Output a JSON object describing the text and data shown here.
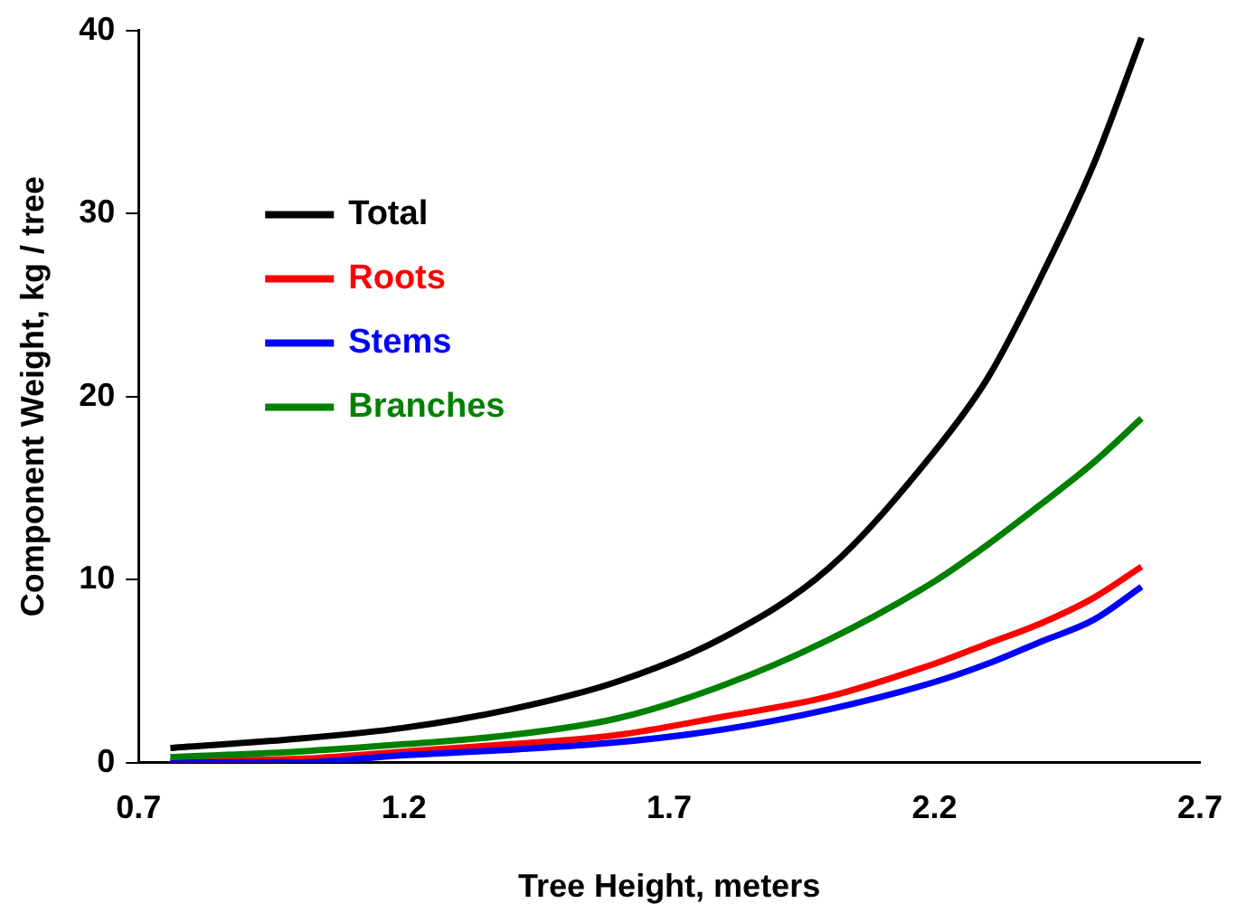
{
  "chart_data": {
    "type": "line",
    "xlabel": "Tree Height, meters",
    "ylabel": "Component Weight, kg / tree",
    "x": [
      0.76,
      1.0,
      1.2,
      1.4,
      1.6,
      1.8,
      2.0,
      2.2,
      2.3,
      2.4,
      2.5,
      2.59
    ],
    "series": [
      {
        "name": "Total",
        "color": "#000000",
        "values": [
          0.8,
          1.3,
          1.9,
          2.9,
          4.4,
          6.8,
          10.6,
          17.0,
          21.0,
          26.5,
          32.7,
          39.6
        ]
      },
      {
        "name": "Roots",
        "color": "#ff0000",
        "values": [
          0.1,
          0.2,
          0.6,
          1.0,
          1.5,
          2.5,
          3.6,
          5.4,
          6.5,
          7.6,
          9.0,
          10.7
        ]
      },
      {
        "name": "Stems",
        "color": "#0000ff",
        "values": [
          0.0,
          0.0,
          0.4,
          0.7,
          1.1,
          1.8,
          2.9,
          4.4,
          5.4,
          6.6,
          7.8,
          9.6
        ]
      },
      {
        "name": "Branches",
        "color": "#008000",
        "values": [
          0.3,
          0.6,
          1.0,
          1.5,
          2.4,
          4.2,
          6.7,
          9.9,
          11.9,
          14.1,
          16.4,
          18.8
        ]
      }
    ],
    "xlim": [
      0.7,
      2.7
    ],
    "xticks": [
      0.7,
      1.2,
      1.7,
      2.2,
      2.7
    ],
    "ylim": [
      0,
      40
    ],
    "yticks": [
      0,
      10,
      20,
      30,
      40
    ],
    "grid": false,
    "legend": "top left",
    "marker": "none",
    "line_style": "solid"
  }
}
